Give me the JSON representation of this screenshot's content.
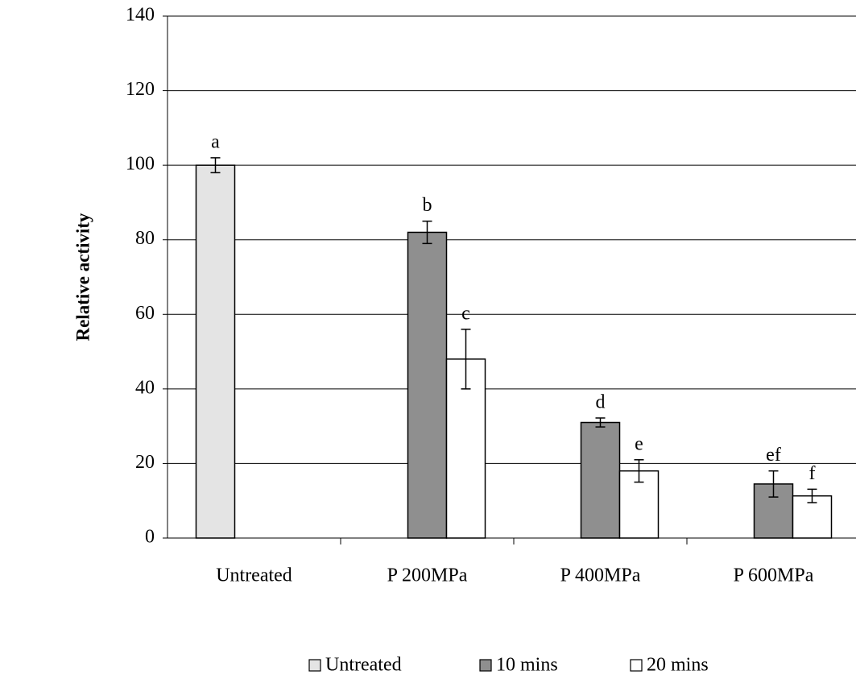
{
  "chart_data": {
    "type": "bar",
    "y_label": "Relative activity",
    "categories": [
      "Untreated",
      "P 200MPa",
      "P 400MPa",
      "P 600MPa"
    ],
    "series": [
      {
        "name": "Untreated",
        "color": "#e4e4e4",
        "values": [
          100,
          null,
          null,
          null
        ],
        "errors": [
          2,
          null,
          null,
          null
        ],
        "annotations": [
          "a",
          null,
          null,
          null
        ]
      },
      {
        "name": "10 mins",
        "color": "#8f8f8f",
        "values": [
          null,
          82,
          31,
          14.5
        ],
        "errors": [
          null,
          3,
          1.2,
          3.5
        ],
        "annotations": [
          null,
          "b",
          "d",
          "ef"
        ]
      },
      {
        "name": "20 mins",
        "color": "#ffffff",
        "values": [
          null,
          48,
          18,
          11.3
        ],
        "errors": [
          null,
          8,
          3,
          1.8
        ],
        "annotations": [
          null,
          "c",
          "e",
          "f"
        ]
      }
    ],
    "ylim": [
      0,
      140
    ],
    "yticks": [
      0,
      20,
      40,
      60,
      80,
      100,
      120,
      140
    ],
    "grid": true,
    "legend": "bottom"
  }
}
